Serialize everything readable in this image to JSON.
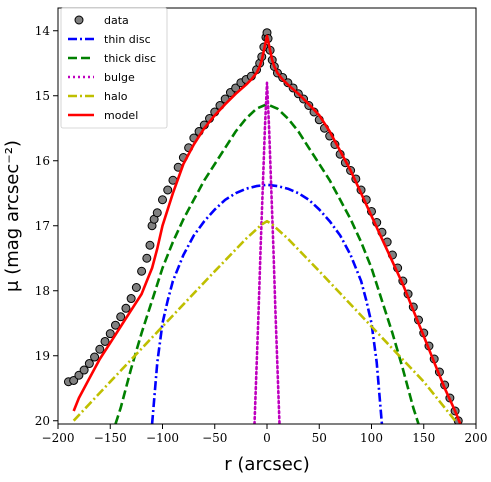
{
  "chart_data": {
    "type": "line",
    "title": "",
    "xlabel": "r (arcsec)",
    "ylabel": "μ (mag arcsec⁻²)",
    "xlim": [
      -200,
      200
    ],
    "ylim": [
      20.05,
      13.65
    ],
    "y_inverted": true,
    "grid": false,
    "legend_position": "top-left",
    "x_ticks": [
      -200,
      -150,
      -100,
      -50,
      0,
      50,
      100,
      150,
      200
    ],
    "x_tick_labels": [
      "−200",
      "−150",
      "−100",
      "−50",
      "0",
      "50",
      "100",
      "150",
      "200"
    ],
    "y_ticks": [
      14,
      15,
      16,
      17,
      18,
      19,
      20
    ],
    "y_tick_labels": [
      "14",
      "15",
      "16",
      "17",
      "18",
      "19",
      "20"
    ],
    "series": [
      {
        "name": "data",
        "style": "markers",
        "color": "#808080",
        "edge_color": "#000000",
        "x": [
          -190,
          -185,
          -180,
          -175,
          -170,
          -165,
          -160,
          -155,
          -150,
          -145,
          -140,
          -135,
          -130,
          -125,
          -120,
          -115,
          -112,
          -110,
          -108,
          -105,
          -100,
          -95,
          -90,
          -85,
          -80,
          -75,
          -70,
          -65,
          -60,
          -55,
          -50,
          -45,
          -40,
          -35,
          -30,
          -25,
          -20,
          -15,
          -10,
          -7,
          -5,
          -3,
          -1,
          0,
          1,
          3,
          5,
          7,
          10,
          15,
          20,
          25,
          30,
          35,
          40,
          45,
          50,
          55,
          60,
          65,
          70,
          75,
          80,
          85,
          90,
          95,
          100,
          105,
          110,
          115,
          120,
          125,
          130,
          135,
          140,
          145,
          150,
          155,
          160,
          165,
          170,
          175,
          180,
          183
        ],
        "y": [
          19.4,
          19.38,
          19.3,
          19.22,
          19.12,
          19.02,
          18.9,
          18.78,
          18.66,
          18.53,
          18.4,
          18.27,
          18.12,
          17.95,
          17.7,
          17.5,
          17.3,
          17.0,
          16.9,
          16.8,
          16.6,
          16.45,
          16.3,
          16.1,
          15.95,
          15.8,
          15.65,
          15.55,
          15.45,
          15.35,
          15.25,
          15.15,
          15.05,
          14.95,
          14.88,
          14.8,
          14.75,
          14.7,
          14.6,
          14.5,
          14.4,
          14.25,
          14.1,
          14.03,
          14.12,
          14.3,
          14.45,
          14.55,
          14.65,
          14.72,
          14.8,
          14.88,
          14.97,
          15.05,
          15.15,
          15.25,
          15.37,
          15.5,
          15.62,
          15.75,
          15.9,
          16.03,
          16.15,
          16.28,
          16.45,
          16.6,
          16.78,
          16.95,
          17.1,
          17.25,
          17.45,
          17.65,
          17.85,
          18.05,
          18.25,
          18.45,
          18.65,
          18.85,
          19.05,
          19.25,
          19.45,
          19.65,
          19.85,
          20.0
        ]
      },
      {
        "name": "thin disc",
        "style": "dashdot",
        "color": "#0000ff",
        "x": [
          -110,
          -105,
          -100,
          -95,
          -90,
          -80,
          -70,
          -60,
          -50,
          -40,
          -30,
          -20,
          -10,
          0,
          10,
          20,
          30,
          40,
          50,
          60,
          70,
          80,
          90,
          95,
          100,
          105,
          110
        ],
        "y": [
          20.05,
          19.1,
          18.5,
          18.15,
          17.85,
          17.45,
          17.15,
          16.93,
          16.75,
          16.6,
          16.5,
          16.43,
          16.39,
          16.37,
          16.39,
          16.43,
          16.5,
          16.6,
          16.75,
          16.93,
          17.15,
          17.45,
          17.85,
          18.15,
          18.5,
          19.1,
          20.05
        ]
      },
      {
        "name": "thick disc",
        "style": "dashed",
        "color": "#008000",
        "x": [
          -145,
          -140,
          -130,
          -120,
          -110,
          -100,
          -90,
          -80,
          -70,
          -60,
          -50,
          -40,
          -30,
          -20,
          -10,
          0,
          10,
          20,
          30,
          40,
          50,
          60,
          70,
          80,
          90,
          100,
          110,
          120,
          130,
          140,
          145
        ],
        "y": [
          20.05,
          19.8,
          19.2,
          18.65,
          18.15,
          17.65,
          17.25,
          16.9,
          16.6,
          16.3,
          16.05,
          15.8,
          15.55,
          15.35,
          15.2,
          15.13,
          15.2,
          15.35,
          15.55,
          15.8,
          16.05,
          16.3,
          16.6,
          16.9,
          17.25,
          17.65,
          18.15,
          18.65,
          19.2,
          19.8,
          20.05
        ]
      },
      {
        "name": "bulge",
        "style": "dotted",
        "color": "#bf00bf",
        "x": [
          -12,
          -10,
          -8,
          -6,
          -4,
          -2,
          0,
          2,
          4,
          6,
          8,
          10,
          12
        ],
        "y": [
          20.05,
          19.2,
          18.3,
          17.3,
          16.4,
          15.5,
          14.8,
          15.5,
          16.4,
          17.3,
          18.3,
          19.2,
          20.05
        ]
      },
      {
        "name": "halo",
        "style": "dashdot",
        "color": "#bfbf00",
        "x": [
          -185,
          -150,
          -100,
          -50,
          -20,
          -5,
          0,
          5,
          20,
          50,
          100,
          150,
          180
        ],
        "y": [
          20.0,
          19.4,
          18.55,
          17.7,
          17.2,
          16.98,
          16.93,
          16.98,
          17.2,
          17.7,
          18.55,
          19.4,
          20.0
        ]
      },
      {
        "name": "model",
        "style": "solid",
        "color": "#ff0000",
        "x": [
          -185,
          -180,
          -170,
          -160,
          -150,
          -140,
          -130,
          -120,
          -115,
          -110,
          -105,
          -100,
          -90,
          -80,
          -70,
          -60,
          -50,
          -40,
          -30,
          -20,
          -15,
          -10,
          -7,
          -5,
          -3,
          -1,
          0,
          1,
          3,
          5,
          7,
          10,
          15,
          20,
          30,
          40,
          50,
          60,
          70,
          80,
          90,
          100,
          110,
          120,
          130,
          140,
          150,
          160,
          170,
          180,
          185
        ],
        "y": [
          19.85,
          19.65,
          19.35,
          19.05,
          18.8,
          18.55,
          18.3,
          18.05,
          17.85,
          17.65,
          17.35,
          17.0,
          16.5,
          16.05,
          15.75,
          15.5,
          15.3,
          15.13,
          14.97,
          14.83,
          14.75,
          14.65,
          14.55,
          14.45,
          14.3,
          14.15,
          14.08,
          14.15,
          14.3,
          14.45,
          14.55,
          14.65,
          14.75,
          14.83,
          14.97,
          15.13,
          15.3,
          15.55,
          15.85,
          16.15,
          16.5,
          16.85,
          17.2,
          17.55,
          17.9,
          18.3,
          18.7,
          19.1,
          19.5,
          19.85,
          20.05
        ]
      }
    ]
  }
}
